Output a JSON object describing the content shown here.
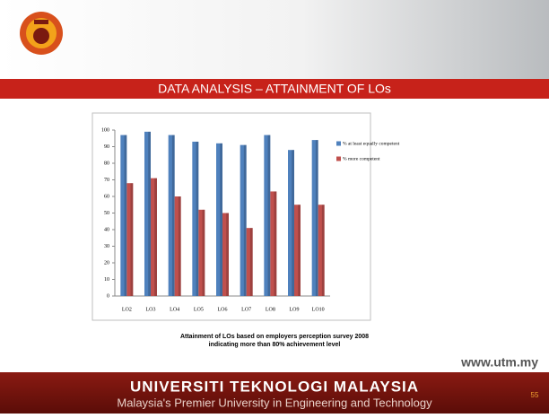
{
  "header": {
    "title": "DATA ANALYSIS – ATTAINMENT OF LOs"
  },
  "chart_data": {
    "type": "bar",
    "categories": [
      "LO2",
      "LO3",
      "LO4",
      "LO5",
      "LO6",
      "LO7",
      "LO8",
      "LO9",
      "LO10"
    ],
    "series": [
      {
        "name": "% at least equally competent",
        "color": "#4f81bd",
        "values": [
          97,
          99,
          97,
          93,
          92,
          91,
          97,
          88,
          94
        ]
      },
      {
        "name": "% more competent",
        "color": "#c0504d",
        "values": [
          68,
          71,
          60,
          52,
          50,
          41,
          63,
          55,
          55
        ]
      }
    ],
    "ylim": [
      0,
      100
    ],
    "yticks": [
      0,
      10,
      20,
      30,
      40,
      50,
      60,
      70,
      80,
      90,
      100
    ],
    "grid": false,
    "legend": "right"
  },
  "caption": [
    "Attainment of LOs based on employers perception survey 2008",
    "indicating more than 80% achievement level"
  ],
  "url": "www.utm.my",
  "footer": {
    "university": "UNIVERSITI TEKNOLOGI MALAYSIA",
    "tagline": "Malaysia's Premier University in Engineering and Technology",
    "page_number": "55"
  }
}
